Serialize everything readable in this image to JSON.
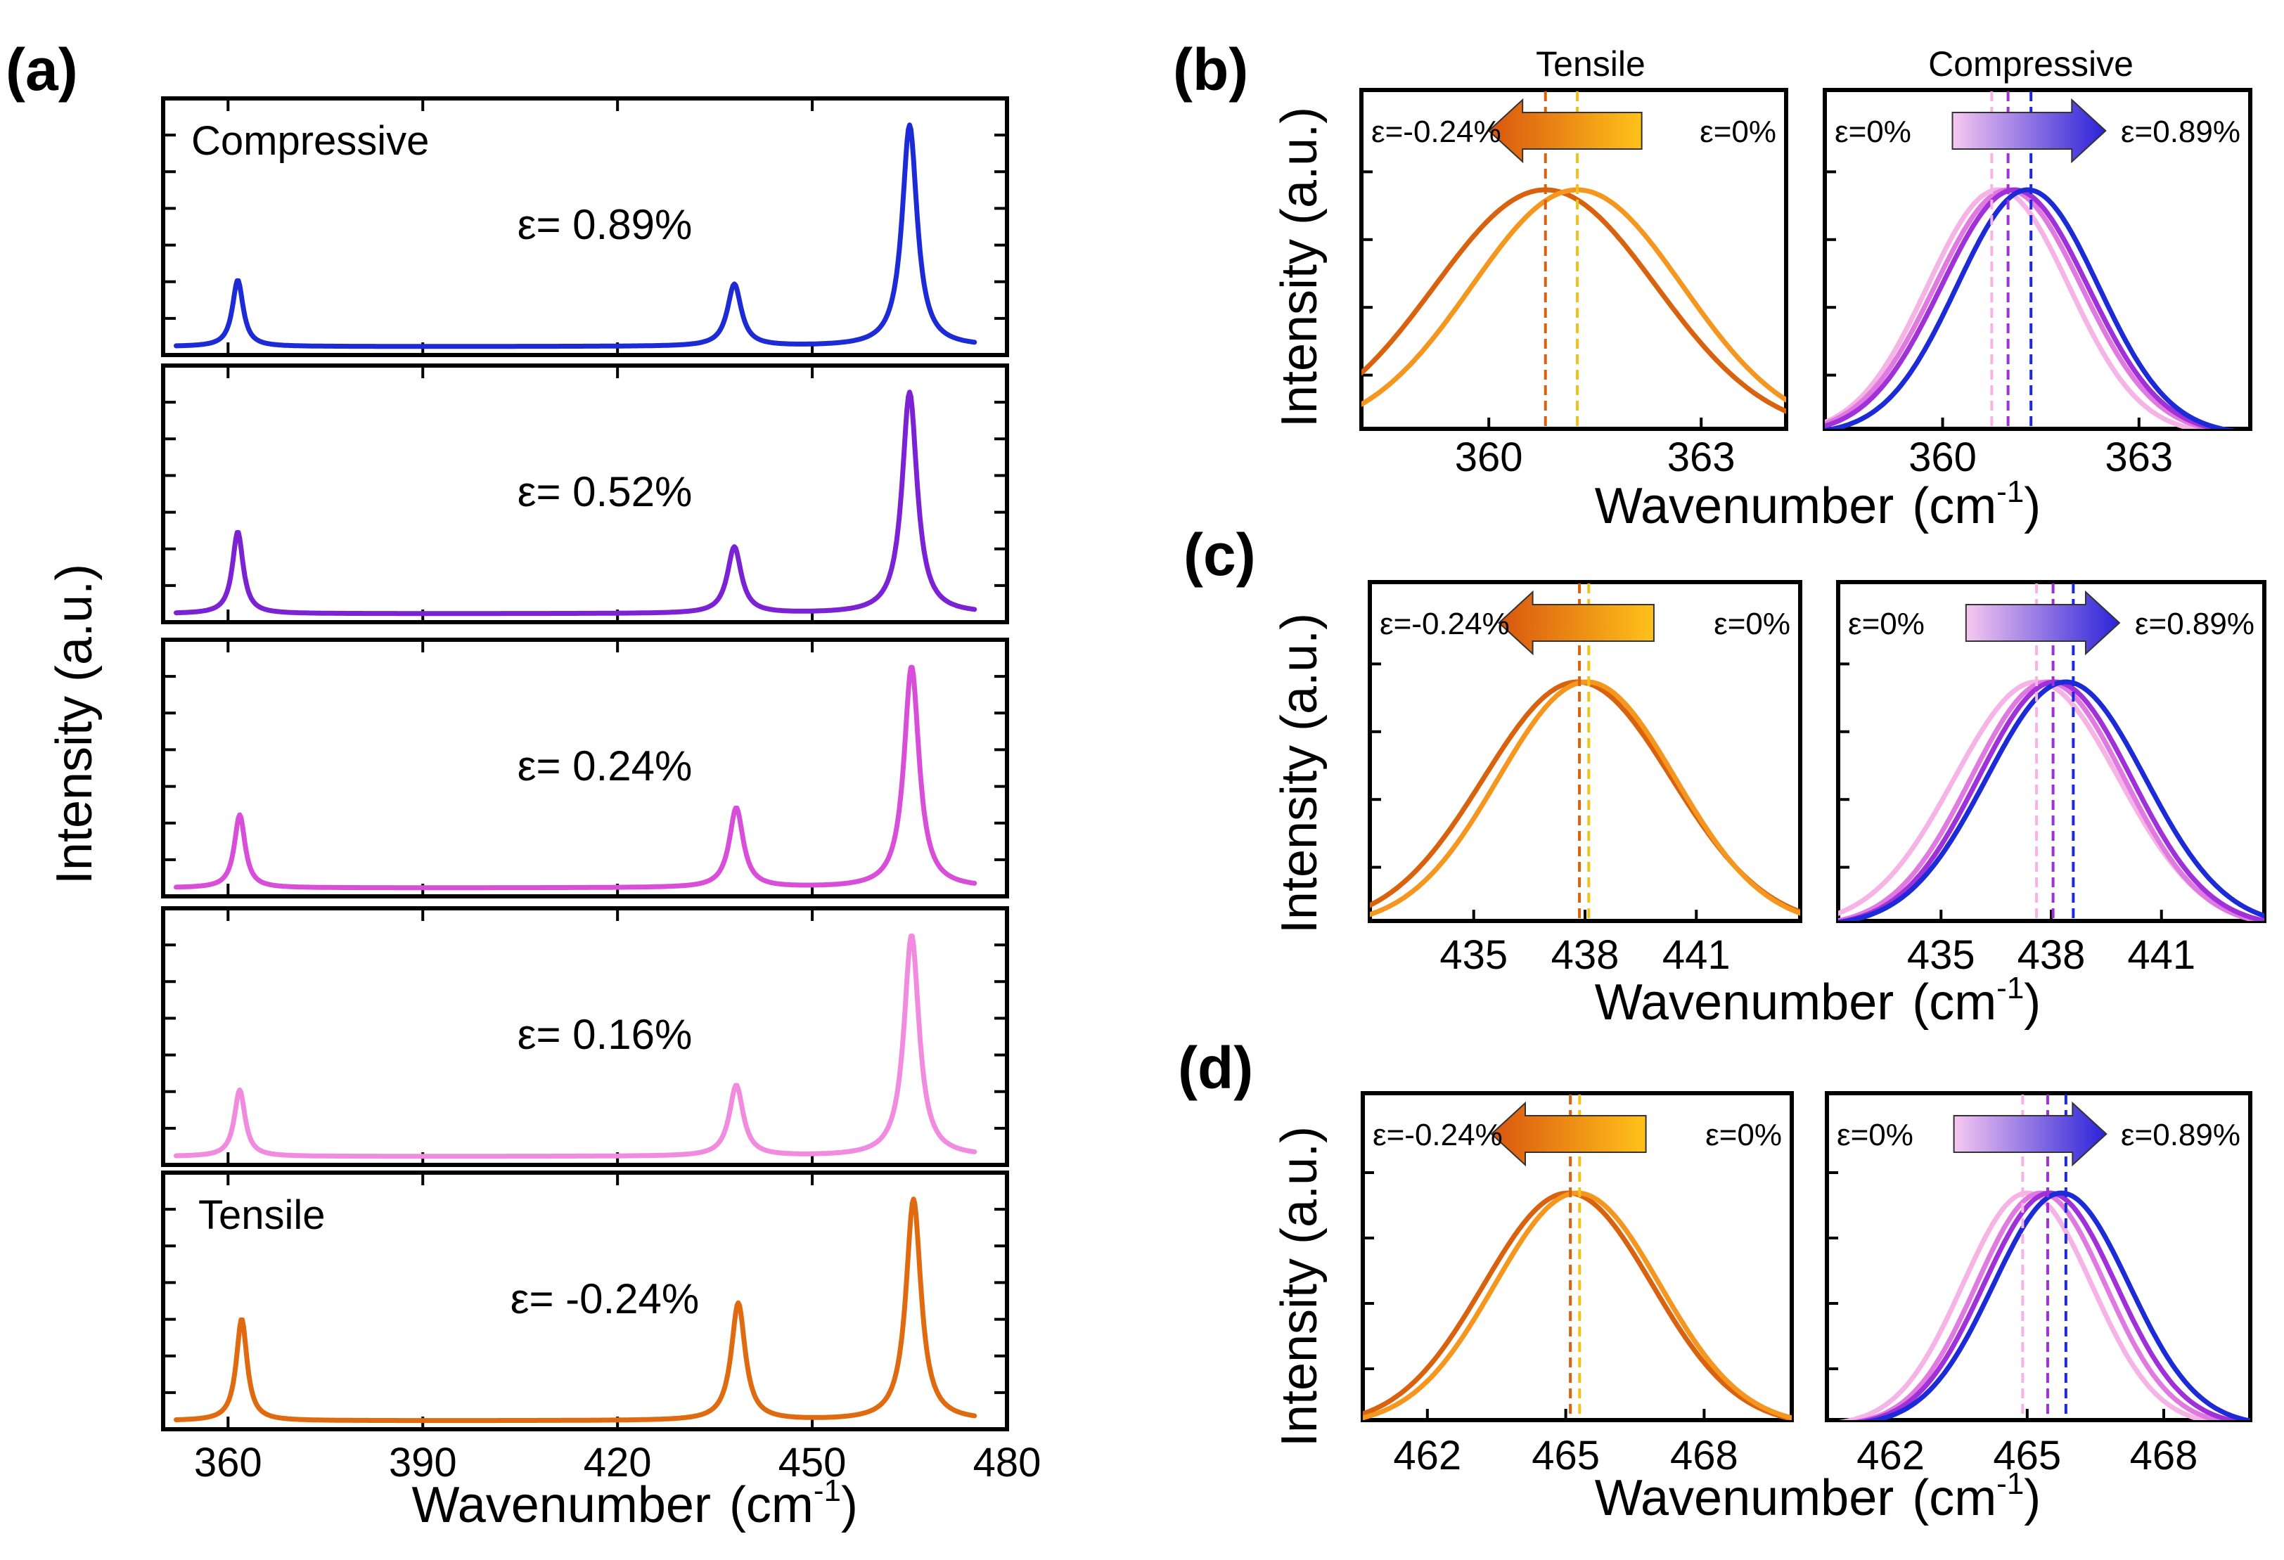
{
  "chart_data": [
    {
      "panel": "(a)",
      "type": "line",
      "xlabel": "Wavenumber",
      "xunit": "(cm",
      "xunit_sup": "-1",
      "xunit_close": ")",
      "ylabel": "Intensity (a.u.)",
      "xlim": [
        350,
        480
      ],
      "xticks": [
        360,
        390,
        420,
        450,
        480
      ],
      "peaks": [
        361.5,
        438,
        465
      ],
      "annotations": {
        "top": "Compressive",
        "bottom": "Tensile"
      },
      "series": [
        {
          "name": "ε= 0.89%",
          "strain_label": "ε= 0.89%",
          "color": "#1c2bd6",
          "peak_heights": [
            0.3,
            0.28,
            1.0
          ],
          "peak_shift": 0.0
        },
        {
          "name": "ε= 0.52%",
          "strain_label": "ε= 0.52%",
          "color": "#7b22d4",
          "peak_heights": [
            0.37,
            0.3,
            1.0
          ],
          "peak_shift": 0.0
        },
        {
          "name": "ε= 0.24%",
          "strain_label": "ε= 0.24%",
          "color": "#d94ed9",
          "peak_heights": [
            0.33,
            0.36,
            1.0
          ],
          "peak_shift": 0.3
        },
        {
          "name": "ε= 0.16%",
          "strain_label": "ε= 0.16%",
          "color": "#f08be0",
          "peak_heights": [
            0.3,
            0.32,
            1.0
          ],
          "peak_shift": 0.3
        },
        {
          "name": "ε= -0.24%",
          "strain_label": "ε= -0.24%",
          "color": "#e06a10",
          "peak_heights": [
            0.46,
            0.53,
            1.0
          ],
          "peak_shift": 0.6
        }
      ]
    },
    {
      "panel": "(b)",
      "type": "line",
      "xlabel": "Wavenumber",
      "xunit": "(cm",
      "xunit_sup": "-1",
      "xunit_close": ")",
      "ylabel": "Intensity (a.u.)",
      "subplots": [
        {
          "title": "Tensile",
          "xlim": [
            358.2,
            364.2
          ],
          "xticks": [
            360,
            363
          ],
          "arrow": {
            "left_label": "ε=-0.24%",
            "right_label": "ε=0%",
            "direction": "left",
            "colors": [
              "#d9560f",
              "#ffc21a"
            ]
          },
          "series": [
            {
              "name": "ε=-0.24%",
              "color": "#d9620f",
              "center": 360.8,
              "width": 2.1
            },
            {
              "name": "ε=0%",
              "color": "#f5961f",
              "center": 361.25,
              "width": 2.0
            }
          ],
          "vlines": [
            {
              "x": 360.8,
              "color": "#d9620f"
            },
            {
              "x": 361.25,
              "color": "#f2c21a"
            }
          ]
        },
        {
          "title": "Compressive",
          "xlim": [
            358.2,
            364.7
          ],
          "xticks": [
            360,
            363
          ],
          "arrow": {
            "left_label": "ε=0%",
            "right_label": "ε=0.89%",
            "direction": "right",
            "colors": [
              "#f7c8f0",
              "#2a22d8"
            ]
          },
          "series": [
            {
              "name": "ε=0%",
              "color": "#f6b3e6",
              "center": 360.85,
              "width": 1.45
            },
            {
              "name": "ε=0.16%",
              "color": "#e07ae0",
              "center": 361.0,
              "width": 1.5
            },
            {
              "name": "ε=0.52%",
              "color": "#a030d8",
              "center": 361.1,
              "width": 1.5
            },
            {
              "name": "ε=0.89%",
              "color": "#1c2bd6",
              "center": 361.3,
              "width": 1.45
            }
          ],
          "vlines": [
            {
              "x": 360.75,
              "color": "#f6b3e6"
            },
            {
              "x": 361.0,
              "color": "#a030d8"
            },
            {
              "x": 361.35,
              "color": "#1c2bd6"
            }
          ]
        }
      ]
    },
    {
      "panel": "(c)",
      "type": "line",
      "xlabel": "Wavenumber",
      "xunit": "(cm",
      "xunit_sup": "-1",
      "xunit_close": ")",
      "ylabel": "Intensity (a.u.)",
      "subplots": [
        {
          "xlim": [
            432.2,
            443.8
          ],
          "xticks": [
            435,
            438,
            441
          ],
          "arrow": {
            "left_label": "ε=-0.24%",
            "right_label": "ε=0%",
            "direction": "left",
            "colors": [
              "#d9560f",
              "#ffc21a"
            ]
          },
          "series": [
            {
              "name": "ε=-0.24%",
              "color": "#d9620f",
              "center": 437.8,
              "width": 3.4
            },
            {
              "name": "ε=0%",
              "color": "#f5961f",
              "center": 438.05,
              "width": 3.2
            }
          ],
          "vlines": [
            {
              "x": 437.85,
              "color": "#d9620f"
            },
            {
              "x": 438.1,
              "color": "#f2c21a"
            }
          ]
        },
        {
          "xlim": [
            432.2,
            443.8
          ],
          "xticks": [
            435,
            438,
            441
          ],
          "arrow": {
            "left_label": "ε=0%",
            "right_label": "ε=0.89%",
            "direction": "right",
            "colors": [
              "#f7c8f0",
              "#2a22d8"
            ]
          },
          "series": [
            {
              "name": "ε=0%",
              "color": "#f6b3e6",
              "center": 437.6,
              "width": 3.0
            },
            {
              "name": "ε=0.16%",
              "color": "#e07ae0",
              "center": 437.9,
              "width": 2.8
            },
            {
              "name": "ε=0.52%",
              "color": "#a030d8",
              "center": 438.1,
              "width": 2.8
            },
            {
              "name": "ε=0.89%",
              "color": "#1c2bd6",
              "center": 438.4,
              "width": 2.9
            }
          ],
          "vlines": [
            {
              "x": 437.6,
              "color": "#f6b3e6"
            },
            {
              "x": 438.05,
              "color": "#a030d8"
            },
            {
              "x": 438.6,
              "color": "#1c2bd6"
            }
          ]
        }
      ]
    },
    {
      "panel": "(d)",
      "type": "line",
      "xlabel": "Wavenumber",
      "xunit": "(cm",
      "xunit_sup": "-1",
      "xunit_close": ")",
      "ylabel": "Intensity (a.u.)",
      "subplots": [
        {
          "xlim": [
            460.6,
            469.9
          ],
          "xticks": [
            462,
            465,
            468
          ],
          "arrow": {
            "left_label": "ε=-0.24%",
            "right_label": "ε=0%",
            "direction": "left",
            "colors": [
              "#d9560f",
              "#ffc21a"
            ]
          },
          "series": [
            {
              "name": "ε=-0.24%",
              "color": "#d9620f",
              "center": 465.05,
              "width": 2.45
            },
            {
              "name": "ε=0%",
              "color": "#f5961f",
              "center": 465.25,
              "width": 2.4
            }
          ],
          "vlines": [
            {
              "x": 465.1,
              "color": "#d9620f"
            },
            {
              "x": 465.3,
              "color": "#f2c21a"
            }
          ]
        },
        {
          "xlim": [
            460.6,
            469.9
          ],
          "xticks": [
            462,
            465,
            468
          ],
          "arrow": {
            "left_label": "ε=0%",
            "right_label": "ε=0.89%",
            "direction": "right",
            "colors": [
              "#f7c8f0",
              "#2a22d8"
            ]
          },
          "series": [
            {
              "name": "ε=0%",
              "color": "#f6b3e6",
              "center": 465.0,
              "width": 1.9
            },
            {
              "name": "ε=0.16%",
              "color": "#e07ae0",
              "center": 465.3,
              "width": 1.9
            },
            {
              "name": "ε=0.52%",
              "color": "#a030d8",
              "center": 465.5,
              "width": 1.95
            },
            {
              "name": "ε=0.89%",
              "color": "#1c2bd6",
              "center": 465.75,
              "width": 2.0
            }
          ],
          "vlines": [
            {
              "x": 464.9,
              "color": "#f6b3e6"
            },
            {
              "x": 465.45,
              "color": "#a030d8"
            },
            {
              "x": 465.85,
              "color": "#1c2bd6"
            }
          ]
        }
      ]
    }
  ]
}
